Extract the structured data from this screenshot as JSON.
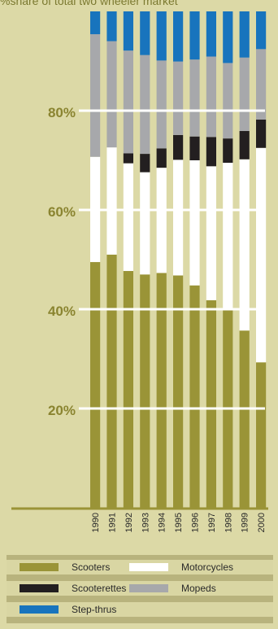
{
  "chart_data": {
    "type": "bar",
    "stacked": true,
    "orientation": "vertical",
    "title": "%share of total two wheeler market",
    "xlabel": "",
    "ylabel": "",
    "ylim": [
      0,
      100
    ],
    "yticks": [
      "20%",
      "40%",
      "60%",
      "80%"
    ],
    "ytick_values": [
      20,
      40,
      60,
      80
    ],
    "grid": true,
    "legend_position": "bottom",
    "categories": [
      "1990",
      "1991",
      "1992",
      "1993",
      "1994",
      "1995",
      "1996",
      "1997",
      "1998",
      "1999",
      "2000"
    ],
    "series": [
      {
        "name": "Scooters",
        "color": "#9a9437",
        "values": [
          49.5,
          51,
          47.7,
          47,
          47.3,
          46.8,
          44.8,
          41.8,
          40,
          35.7,
          29.3
        ]
      },
      {
        "name": "Motorcycles",
        "color": "#ffffff",
        "values": [
          21.2,
          21.6,
          21.7,
          20.6,
          21.2,
          23.3,
          25.2,
          27,
          29.5,
          34.5,
          43.2
        ]
      },
      {
        "name": "Scooterettes",
        "color": "#231f20",
        "values": [
          0,
          0,
          2,
          3.7,
          3.9,
          5,
          4.8,
          5.9,
          4.9,
          5.7,
          5.7
        ]
      },
      {
        "name": "Mopeds",
        "color": "#a7a8ab",
        "values": [
          24.7,
          21.4,
          20.7,
          19.9,
          17.7,
          14.8,
          15.5,
          16.2,
          15.2,
          14.8,
          14.2
        ]
      },
      {
        "name": "Step-thrus",
        "color": "#1874bd",
        "values": [
          4.6,
          6,
          7.9,
          8.8,
          9.9,
          10.1,
          9.7,
          9.1,
          10.4,
          9.3,
          7.6
        ]
      }
    ]
  },
  "legend": {
    "items": [
      {
        "name": "Scooters",
        "color": "#9a9437"
      },
      {
        "name": "Motorcycles",
        "color": "#ffffff"
      },
      {
        "name": "Scooterettes",
        "color": "#231f20"
      },
      {
        "name": "Mopeds",
        "color": "#a7a8ab"
      },
      {
        "name": "Step-thrus",
        "color": "#1874bd"
      }
    ]
  },
  "colors": {
    "background": "#dcd9a6",
    "gridline": "#ffffff",
    "axis": "#9a9437",
    "tick_label": "#8a8430"
  }
}
